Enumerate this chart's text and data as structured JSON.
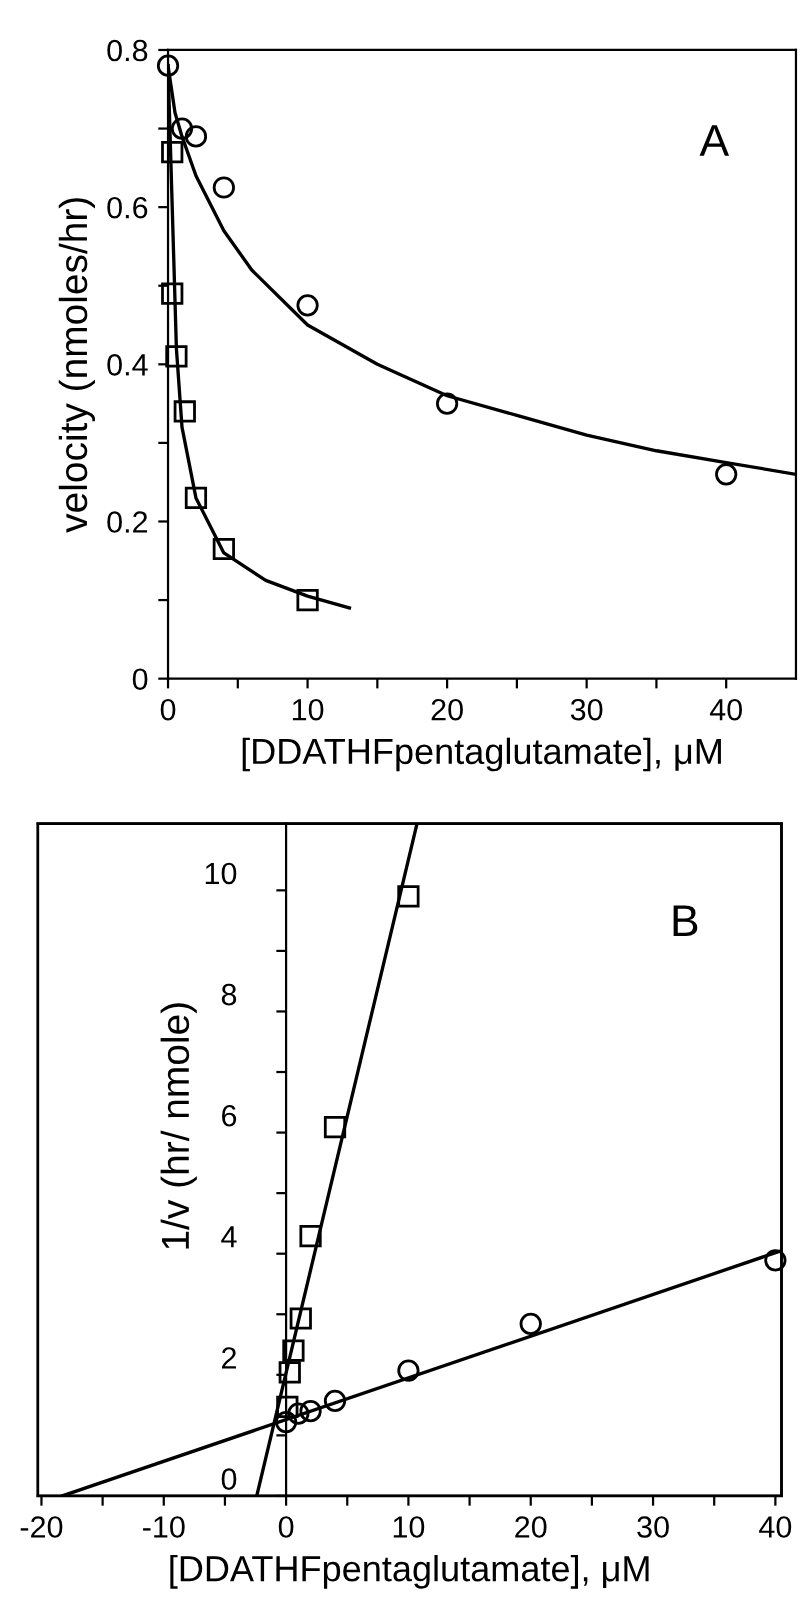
{
  "chart_data": [
    {
      "type": "scatter",
      "xlabel": "[DDATHFpentaglutamate], μM",
      "ylabel": "velocity (nmoles/hr)",
      "annotations": [
        "A"
      ],
      "xlim": [
        0,
        45
      ],
      "ylim": [
        0,
        0.8
      ],
      "xticks": [
        0,
        {
          "value": 5,
          "label": null
        },
        10,
        {
          "value": 15,
          "label": null
        },
        20,
        {
          "value": 25,
          "label": null
        },
        30,
        {
          "value": 35,
          "label": null
        },
        40
      ],
      "yticks": [
        0,
        {
          "value": 0.1,
          "label": null
        },
        0.2,
        {
          "value": 0.3,
          "label": null
        },
        0.4,
        {
          "value": 0.5,
          "label": null
        },
        0.6,
        {
          "value": 0.7,
          "label": null
        },
        0.8
      ],
      "line_style": "solid",
      "series": [
        {
          "marker": "circle",
          "color": "#000000",
          "x": [
            0,
            1,
            2,
            4,
            10,
            20,
            40
          ],
          "values": [
            0.78,
            0.7,
            0.69,
            0.625,
            0.475,
            0.35,
            0.26
          ]
        },
        {
          "marker": "square",
          "color": "#000000",
          "x": [
            0.3,
            0.3,
            0.6,
            1.2,
            2,
            4,
            10
          ],
          "values": [
            0.67,
            0.49,
            0.41,
            0.34,
            0.23,
            0.165,
            0.1
          ]
        },
        {
          "type": "line",
          "color": "#000000",
          "x": [
            0,
            0.5,
            1,
            2,
            4,
            6,
            10,
            15,
            20,
            25,
            30,
            35,
            40,
            45
          ],
          "values": [
            0.78,
            0.72,
            0.69,
            0.64,
            0.57,
            0.52,
            0.45,
            0.4,
            0.36,
            0.335,
            0.31,
            0.29,
            0.275,
            0.26
          ]
        },
        {
          "type": "line",
          "color": "#000000",
          "x": [
            0,
            0.3,
            0.6,
            1,
            2,
            4,
            7,
            10,
            13
          ],
          "values": [
            0.78,
            0.6,
            0.42,
            0.32,
            0.23,
            0.16,
            0.125,
            0.105,
            0.09
          ]
        }
      ]
    },
    {
      "type": "scatter",
      "xlabel": "[DDATHFpentaglutamate], μM",
      "ylabel": "1/v (hr/ nmole)",
      "annotations": [
        "B"
      ],
      "xlim": [
        -20.3,
        40.5
      ],
      "ylim": [
        0,
        11.1
      ],
      "xticks": [
        -20,
        {
          "value": -15,
          "label": null
        },
        -10,
        {
          "value": -5,
          "label": null
        },
        0,
        {
          "value": 5,
          "label": null
        },
        10,
        {
          "value": 15,
          "label": null
        },
        20,
        {
          "value": 25,
          "label": null
        },
        30,
        {
          "value": 35,
          "label": null
        },
        40
      ],
      "yticks": [
        0,
        {
          "value": 1,
          "label": null
        },
        2,
        {
          "value": 3,
          "label": null
        },
        4,
        {
          "value": 5,
          "label": null
        },
        6,
        {
          "value": 7,
          "label": null
        },
        8,
        {
          "value": 9,
          "label": null
        },
        10
      ],
      "line_style": "solid",
      "series": [
        {
          "marker": "circle",
          "color": "#000000",
          "x": [
            0,
            1,
            2,
            4,
            10,
            20,
            40
          ],
          "values": [
            1.22,
            1.36,
            1.4,
            1.57,
            2.07,
            2.84,
            3.89
          ]
        },
        {
          "marker": "square",
          "color": "#000000",
          "x": [
            0.1,
            0.3,
            0.6,
            1.2,
            2,
            4,
            10
          ],
          "values": [
            1.47,
            2.04,
            2.4,
            2.93,
            4.29,
            6.09,
            9.9
          ]
        },
        {
          "type": "line",
          "color": "#000000",
          "x": [
            -18.3,
            40.5
          ],
          "values": [
            0,
            4.05
          ]
        },
        {
          "type": "line",
          "color": "#000000",
          "x": [
            -2.4,
            10.7
          ],
          "values": [
            0,
            11.1
          ]
        }
      ]
    }
  ]
}
